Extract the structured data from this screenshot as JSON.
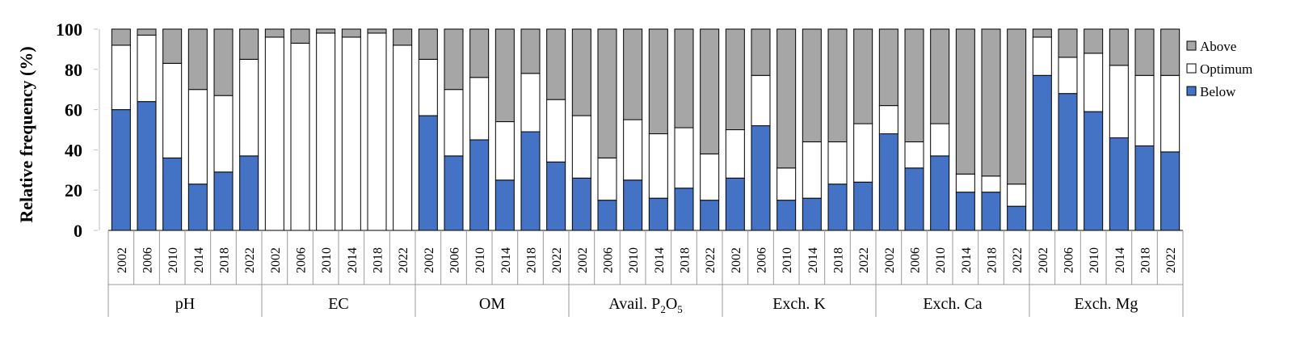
{
  "chart_data": {
    "type": "bar",
    "stacked": true,
    "ylabel": "Relative frequency (%)",
    "ylim": [
      0,
      100
    ],
    "yticks": [
      0,
      20,
      40,
      60,
      80,
      100
    ],
    "years": [
      "2002",
      "2006",
      "2010",
      "2014",
      "2018",
      "2022"
    ],
    "groups": [
      {
        "label": "pH",
        "label_parts": [
          {
            "text": "pH"
          }
        ],
        "below": [
          60,
          64,
          36,
          23,
          29,
          37
        ],
        "optimum": [
          32,
          33,
          47,
          47,
          38,
          48
        ]
      },
      {
        "label": "EC",
        "label_parts": [
          {
            "text": "EC"
          }
        ],
        "below": [
          0,
          0,
          0,
          0,
          0,
          0
        ],
        "optimum": [
          96,
          93,
          98,
          96,
          98,
          92
        ]
      },
      {
        "label": "OM",
        "label_parts": [
          {
            "text": "OM"
          }
        ],
        "below": [
          57,
          37,
          45,
          25,
          49,
          34
        ],
        "optimum": [
          28,
          33,
          31,
          29,
          29,
          31
        ]
      },
      {
        "label": "Avail. P2O5",
        "label_parts": [
          {
            "text": "Avail.  P"
          },
          {
            "text": "2",
            "sub": true
          },
          {
            "text": "O"
          },
          {
            "text": "5",
            "sub": true
          }
        ],
        "below": [
          26,
          15,
          25,
          16,
          21,
          15
        ],
        "optimum": [
          31,
          21,
          30,
          32,
          30,
          23
        ]
      },
      {
        "label": "Exch. K",
        "label_parts": [
          {
            "text": "Exch. K"
          }
        ],
        "below": [
          26,
          52,
          15,
          16,
          23,
          24
        ],
        "optimum": [
          24,
          25,
          16,
          28,
          21,
          29
        ]
      },
      {
        "label": "Exch. Ca",
        "label_parts": [
          {
            "text": "Exch. Ca"
          }
        ],
        "below": [
          48,
          31,
          37,
          19,
          19,
          12
        ],
        "optimum": [
          14,
          13,
          16,
          9,
          8,
          11
        ]
      },
      {
        "label": "Exch. Mg",
        "label_parts": [
          {
            "text": "Exch. Mg"
          }
        ],
        "below": [
          77,
          68,
          59,
          46,
          42,
          39
        ],
        "optimum": [
          19,
          18,
          29,
          36,
          35,
          38
        ]
      }
    ],
    "series": [
      {
        "name": "Above",
        "color": "#a6a6a6"
      },
      {
        "name": "Optimum",
        "color": "#ffffff"
      },
      {
        "name": "Below",
        "color": "#4472c4"
      }
    ],
    "legend": {
      "position": "right",
      "order": [
        "Above",
        "Optimum",
        "Below"
      ]
    },
    "grid": false
  }
}
